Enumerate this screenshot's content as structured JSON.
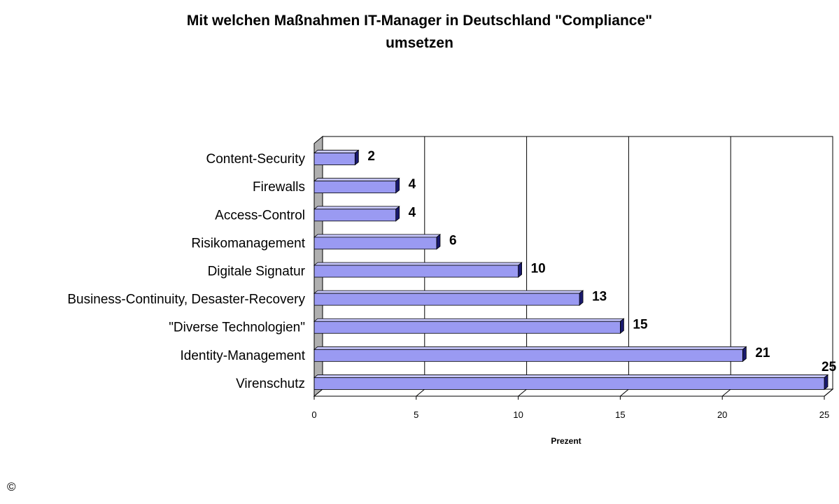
{
  "chart_data": {
    "type": "bar",
    "orientation": "horizontal",
    "title_lines": [
      "Mit welchen Maßnahmen  IT-Manager in Deutschland \"Compliance\"",
      "umsetzen"
    ],
    "categories": [
      "Content-Security",
      "Firewalls",
      "Access-Control",
      "Risikomanagement",
      "Digitale Signatur",
      "Business-Continuity, Desaster-Recovery",
      "\"Diverse Technologien\"",
      "Identity-Management",
      "Virenschutz"
    ],
    "values": [
      2,
      4,
      4,
      6,
      10,
      13,
      15,
      21,
      25
    ],
    "xlabel": "Prezent",
    "ylabel": "",
    "xlim": [
      0,
      25
    ],
    "xticks": [
      0,
      5,
      10,
      15,
      20,
      25
    ],
    "grid": "vertical",
    "legend": "none",
    "colors": {
      "bar_face": "#9a9af2",
      "bar_top": "#c6c6fb",
      "bar_side": "#1a1a6e",
      "wall": "#b0b0b0",
      "gridline": "#000000"
    }
  },
  "footer": {
    "copyright_mark": "©"
  }
}
